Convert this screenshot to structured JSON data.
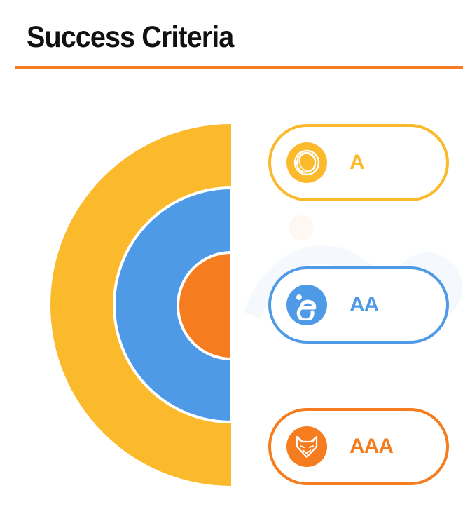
{
  "slide": {
    "title": "Success Criteria"
  },
  "colors": {
    "accent_rule": "#f57c1f",
    "level_a": "#fbb92c",
    "level_aa": "#4f9ae6",
    "level_aaa": "#f57c1f"
  },
  "levels": [
    {
      "label": "A",
      "icon": "ring-swirl-icon",
      "color": "#fbb92c"
    },
    {
      "label": "AA",
      "icon": "letter-e-icon",
      "color": "#4f9ae6"
    },
    {
      "label": "AAA",
      "icon": "fox-face-icon",
      "color": "#f57c1f"
    }
  ]
}
